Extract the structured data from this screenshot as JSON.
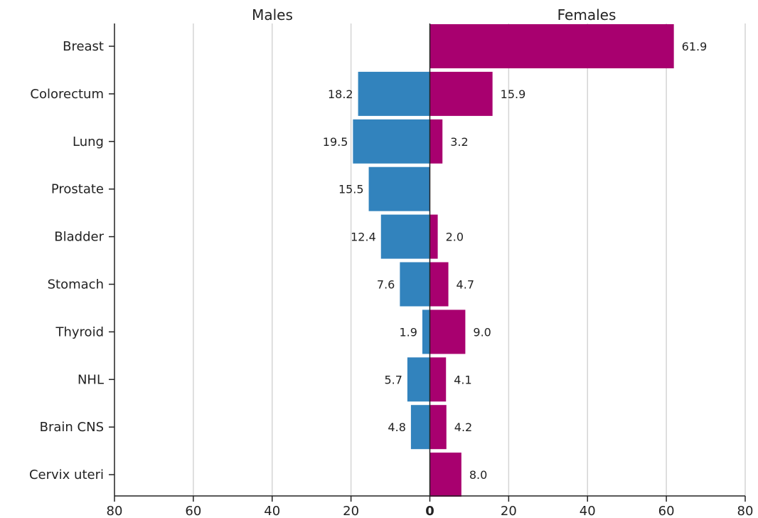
{
  "chart_data": {
    "type": "bar",
    "orientation": "horizontal",
    "layout": "diverging",
    "categories": [
      "Breast",
      "Colorectum",
      "Lung",
      "Prostate",
      "Bladder",
      "Stomach",
      "Thyroid",
      "NHL",
      "Brain CNS",
      "Cervix uteri"
    ],
    "series": [
      {
        "name": "Males",
        "color": "#3283bd",
        "side": "left",
        "values": [
          null,
          18.2,
          19.5,
          15.5,
          12.4,
          7.6,
          1.9,
          5.7,
          4.8,
          null
        ],
        "labels": [
          "",
          "18.2",
          "19.5",
          "15.5",
          "12.4",
          "7.6",
          "1.9",
          "5.7",
          "4.8",
          ""
        ]
      },
      {
        "name": "Females",
        "color": "#a8006f",
        "side": "right",
        "values": [
          61.9,
          15.9,
          3.2,
          null,
          2.0,
          4.7,
          9.0,
          4.1,
          4.2,
          8.0
        ],
        "labels": [
          "61.9",
          "15.9",
          "3.2",
          "",
          "2.0",
          "4.7",
          "9.0",
          "4.1",
          "4.2",
          "8.0"
        ]
      }
    ],
    "xlim": [
      -80,
      80
    ],
    "xticks": [
      -80,
      -60,
      -40,
      -20,
      0,
      20,
      40,
      60,
      80
    ],
    "xtick_labels": [
      "80",
      "60",
      "40",
      "20",
      "0",
      "20",
      "40",
      "60",
      "80"
    ],
    "grid": "vertical",
    "title": "",
    "xlabel": "",
    "ylabel": ""
  }
}
